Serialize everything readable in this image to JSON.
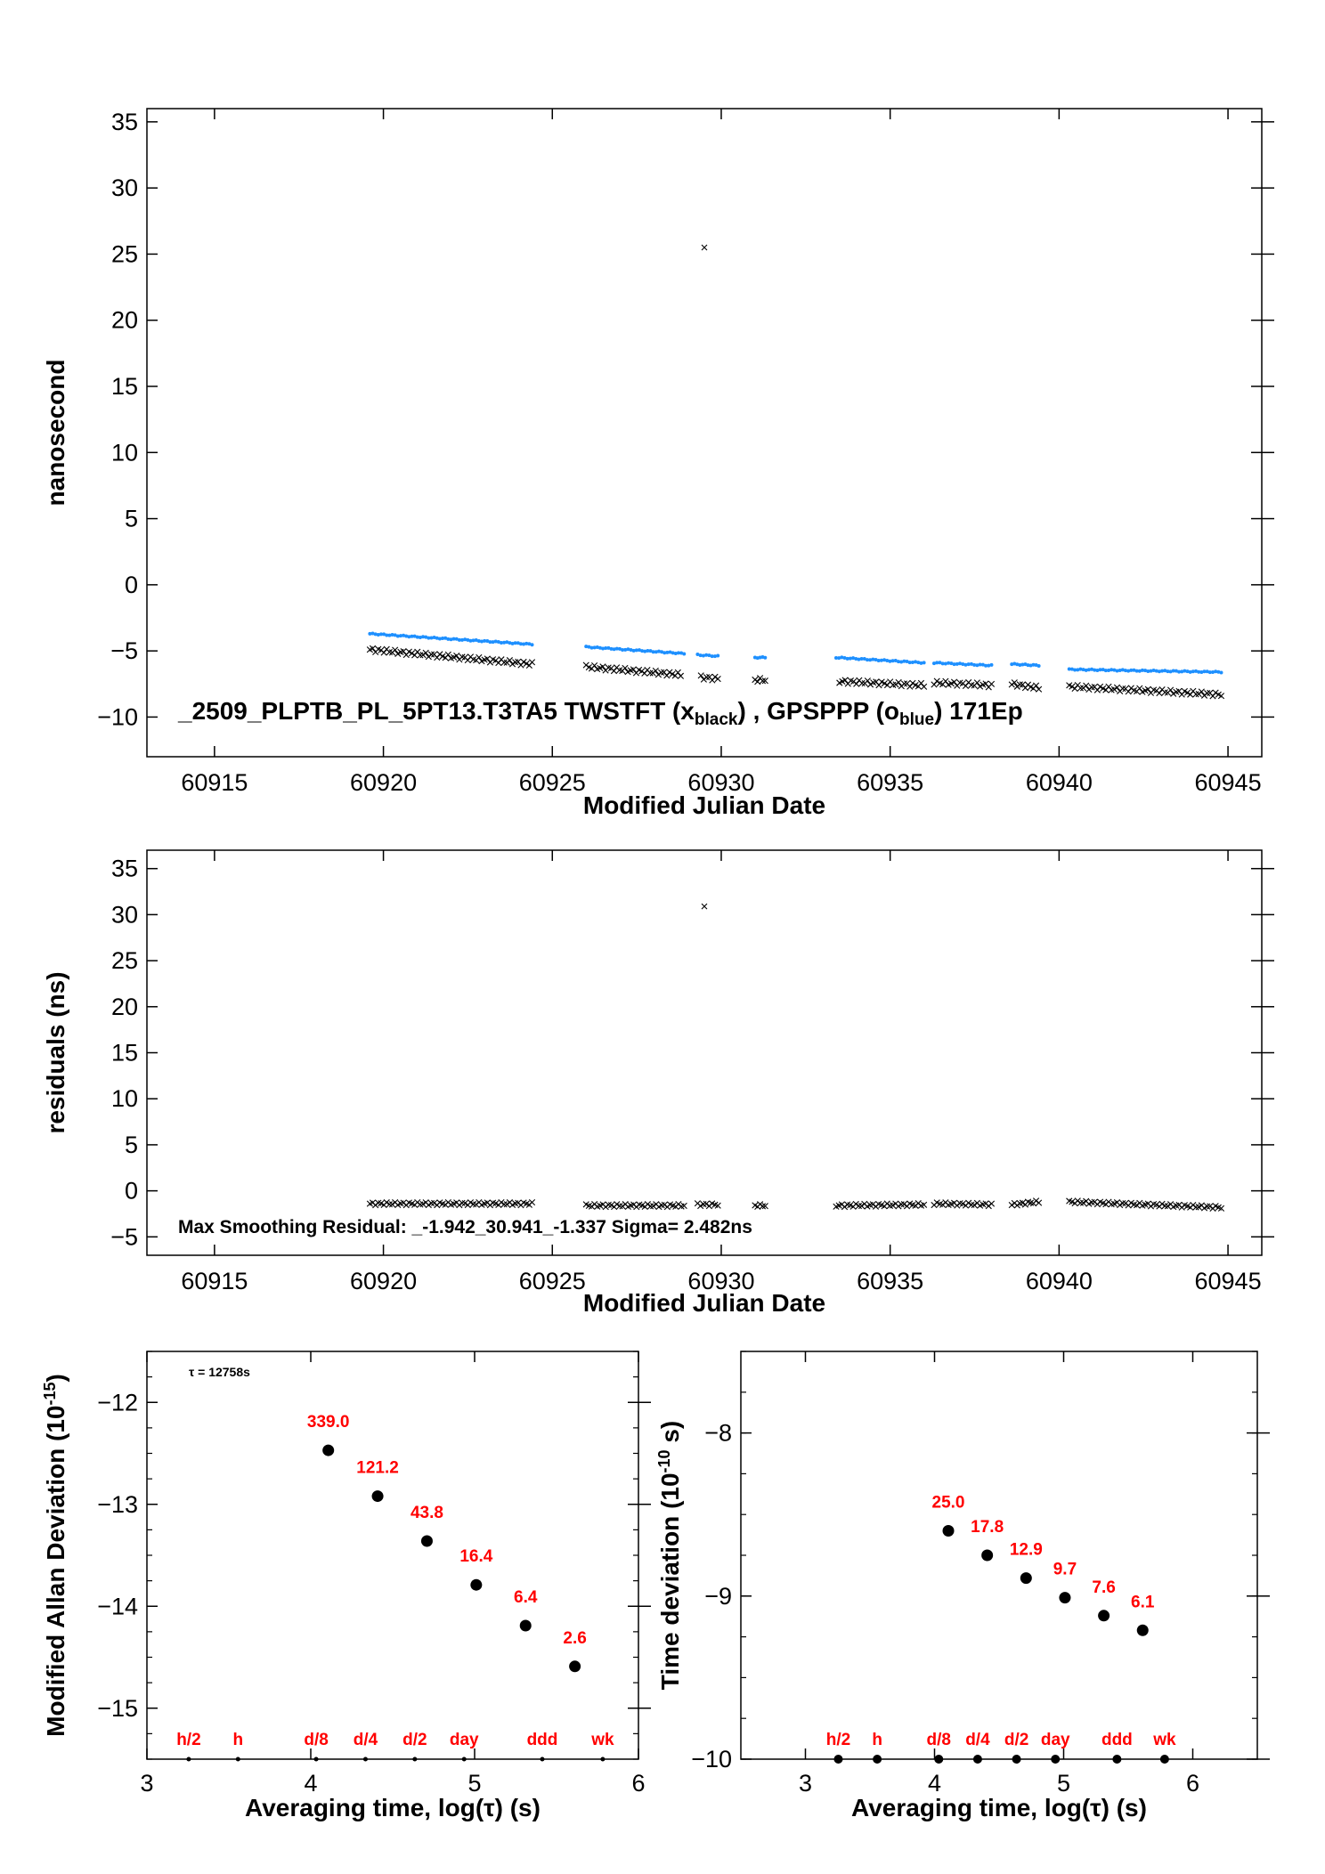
{
  "chart_data": [
    {
      "type": "scatter",
      "title": "",
      "xlabel": "Modified Julian Date",
      "ylabel": "nanosecond",
      "xlim": [
        60913,
        60946
      ],
      "ylim": [
        -13,
        36
      ],
      "xticks": [
        60915,
        60920,
        60925,
        60930,
        60935,
        60940,
        60945
      ],
      "yticks": [
        -10,
        -5,
        0,
        5,
        10,
        15,
        20,
        25,
        30,
        35
      ],
      "annotation": {
        "prefix": "_2509_PLPTB_PL_5PT13.T3TA5     TWSTFT (x",
        "sub1": "black",
        "mid": ") ,  GPSPPP (o",
        "sub2": "blue",
        "suffix": ")  171Ep"
      },
      "series": [
        {
          "name": "TWSTFT",
          "color": "#000000",
          "marker": "x",
          "segments": [
            {
              "x0": 60919.6,
              "x1": 60924.4,
              "y0": -4.9,
              "y1": -6.0
            },
            {
              "x0": 60926.0,
              "x1": 60928.8,
              "y0": -6.2,
              "y1": -6.8
            },
            {
              "x0": 60929.4,
              "x1": 60929.9,
              "y0": -7.0,
              "y1": -7.1
            },
            {
              "x0": 60931.0,
              "x1": 60931.3,
              "y0": -7.2,
              "y1": -7.2
            },
            {
              "x0": 60933.5,
              "x1": 60936.0,
              "y0": -7.3,
              "y1": -7.6
            },
            {
              "x0": 60936.3,
              "x1": 60938.0,
              "y0": -7.4,
              "y1": -7.6
            },
            {
              "x0": 60938.6,
              "x1": 60939.4,
              "y0": -7.5,
              "y1": -7.8
            },
            {
              "x0": 60940.3,
              "x1": 60944.8,
              "y0": -7.7,
              "y1": -8.3
            }
          ],
          "outliers": [
            {
              "x": 60929.5,
              "y": 25.5
            }
          ]
        },
        {
          "name": "GPSPPP",
          "color": "#1e90ff",
          "marker": "o",
          "segments": [
            {
              "x0": 60919.6,
              "x1": 60924.4,
              "y0": -3.7,
              "y1": -4.5
            },
            {
              "x0": 60926.0,
              "x1": 60928.9,
              "y0": -4.7,
              "y1": -5.2
            },
            {
              "x0": 60929.3,
              "x1": 60929.9,
              "y0": -5.3,
              "y1": -5.4
            },
            {
              "x0": 60931.0,
              "x1": 60931.3,
              "y0": -5.5,
              "y1": -5.5
            },
            {
              "x0": 60933.4,
              "x1": 60936.0,
              "y0": -5.5,
              "y1": -5.9
            },
            {
              "x0": 60936.3,
              "x1": 60938.0,
              "y0": -5.9,
              "y1": -6.1
            },
            {
              "x0": 60938.6,
              "x1": 60939.4,
              "y0": -6.0,
              "y1": -6.1
            },
            {
              "x0": 60940.3,
              "x1": 60944.8,
              "y0": -6.4,
              "y1": -6.6
            }
          ]
        }
      ]
    },
    {
      "type": "scatter",
      "title": "",
      "xlabel": "Modified Julian Date",
      "ylabel": "residuals (ns)",
      "xlim": [
        60913,
        60946
      ],
      "ylim": [
        -7,
        37
      ],
      "xticks": [
        60915,
        60920,
        60925,
        60930,
        60935,
        60940,
        60945
      ],
      "yticks": [
        -5,
        0,
        5,
        10,
        15,
        20,
        25,
        30,
        35
      ],
      "annotation": "Max Smoothing Residual: _-1.942_30.941_-1.337  Sigma= 2.482ns",
      "series": [
        {
          "name": "residuals",
          "color": "#000000",
          "marker": "x",
          "segments": [
            {
              "x0": 60919.6,
              "x1": 60924.4,
              "y0": -1.4,
              "y1": -1.4
            },
            {
              "x0": 60926.0,
              "x1": 60928.9,
              "y0": -1.6,
              "y1": -1.6
            },
            {
              "x0": 60929.3,
              "x1": 60929.9,
              "y0": -1.5,
              "y1": -1.5
            },
            {
              "x0": 60931.0,
              "x1": 60931.3,
              "y0": -1.6,
              "y1": -1.6
            },
            {
              "x0": 60933.4,
              "x1": 60936.0,
              "y0": -1.6,
              "y1": -1.5
            },
            {
              "x0": 60936.3,
              "x1": 60938.0,
              "y0": -1.4,
              "y1": -1.5
            },
            {
              "x0": 60938.6,
              "x1": 60939.4,
              "y0": -1.5,
              "y1": -1.2
            },
            {
              "x0": 60940.3,
              "x1": 60944.8,
              "y0": -1.2,
              "y1": -1.8
            }
          ],
          "outliers": [
            {
              "x": 60929.5,
              "y": 30.9
            }
          ]
        }
      ]
    },
    {
      "type": "scatter",
      "title": "",
      "xlabel": "Averaging time, log(τ) (s)",
      "ylabel": "Modified Allan Deviation (10",
      "ylabel_sup": "-15",
      "ylabel_end": ")",
      "xlim": [
        3,
        6
      ],
      "ylim": [
        -15.5,
        -11.5
      ],
      "xticks": [
        3,
        4,
        5,
        6
      ],
      "yticks": [
        -12,
        -13,
        -14,
        -15
      ],
      "tau_note": "τ = 12758s",
      "points": [
        {
          "x": 4.107,
          "y": -12.47,
          "label": "339.0"
        },
        {
          "x": 4.408,
          "y": -12.92,
          "label": "121.2"
        },
        {
          "x": 4.709,
          "y": -13.36,
          "label": "43.8"
        },
        {
          "x": 5.01,
          "y": -13.79,
          "label": "16.4"
        },
        {
          "x": 5.311,
          "y": -14.19,
          "label": "6.4"
        },
        {
          "x": 5.612,
          "y": -14.59,
          "label": "2.6"
        }
      ],
      "markers": [
        {
          "x": 3.255,
          "label": "h/2"
        },
        {
          "x": 3.556,
          "label": "h"
        },
        {
          "x": 4.033,
          "label": "d/8"
        },
        {
          "x": 4.334,
          "label": "d/4"
        },
        {
          "x": 4.635,
          "label": "d/2"
        },
        {
          "x": 4.936,
          "label": "day"
        },
        {
          "x": 5.413,
          "label": "ddd"
        },
        {
          "x": 5.782,
          "label": "wk"
        }
      ]
    },
    {
      "type": "scatter",
      "title": "",
      "xlabel": "Averaging time, log(τ) (s)",
      "ylabel": "Time deviation (10",
      "ylabel_sup": "-10",
      "ylabel_end": " s)",
      "xlim": [
        2.5,
        6.5
      ],
      "ylim": [
        -10,
        -7.5
      ],
      "xticks": [
        3,
        4,
        5,
        6
      ],
      "yticks": [
        -8,
        -9,
        -10
      ],
      "points": [
        {
          "x": 4.107,
          "y": -8.6,
          "label": "25.0"
        },
        {
          "x": 4.408,
          "y": -8.75,
          "label": "17.8"
        },
        {
          "x": 4.709,
          "y": -8.89,
          "label": "12.9"
        },
        {
          "x": 5.01,
          "y": -9.01,
          "label": "9.7"
        },
        {
          "x": 5.311,
          "y": -9.12,
          "label": "7.6"
        },
        {
          "x": 5.612,
          "y": -9.21,
          "label": "6.1"
        }
      ],
      "markers": [
        {
          "x": 3.255,
          "label": "h/2"
        },
        {
          "x": 3.556,
          "label": "h"
        },
        {
          "x": 4.033,
          "label": "d/8"
        },
        {
          "x": 4.334,
          "label": "d/4"
        },
        {
          "x": 4.635,
          "label": "d/2"
        },
        {
          "x": 4.936,
          "label": "day"
        },
        {
          "x": 5.413,
          "label": "ddd"
        },
        {
          "x": 5.782,
          "label": "wk"
        }
      ]
    }
  ]
}
